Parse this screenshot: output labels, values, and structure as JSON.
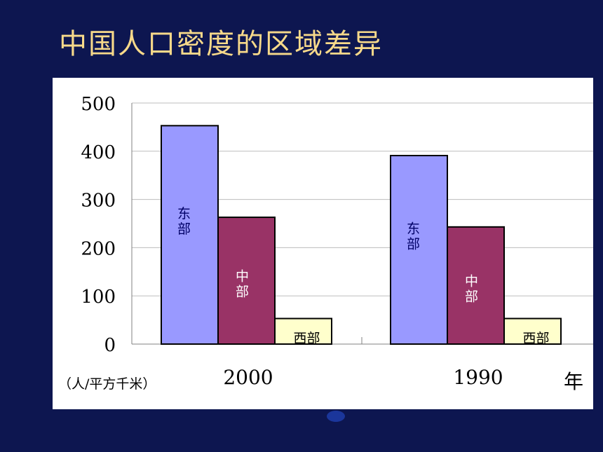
{
  "title": "中国人口密度的区域差异",
  "chart_data": {
    "type": "bar",
    "categories": [
      "2000",
      "1990"
    ],
    "series": [
      {
        "name": "东部",
        "values": [
          453,
          391
        ],
        "color": "#9999ff",
        "label_color": "#000066"
      },
      {
        "name": "中部",
        "values": [
          263,
          243
        ],
        "color": "#993366",
        "label_color": "#ffffff"
      },
      {
        "name": "西部",
        "values": [
          53,
          53
        ],
        "color": "#ffffcc",
        "label_color": "#000000"
      }
    ],
    "ylim": [
      0,
      500
    ],
    "yticks": [
      0,
      100,
      200,
      300,
      400,
      500
    ],
    "ylabel": "（人/平方千米）",
    "xlabel": "年",
    "grid": true
  }
}
